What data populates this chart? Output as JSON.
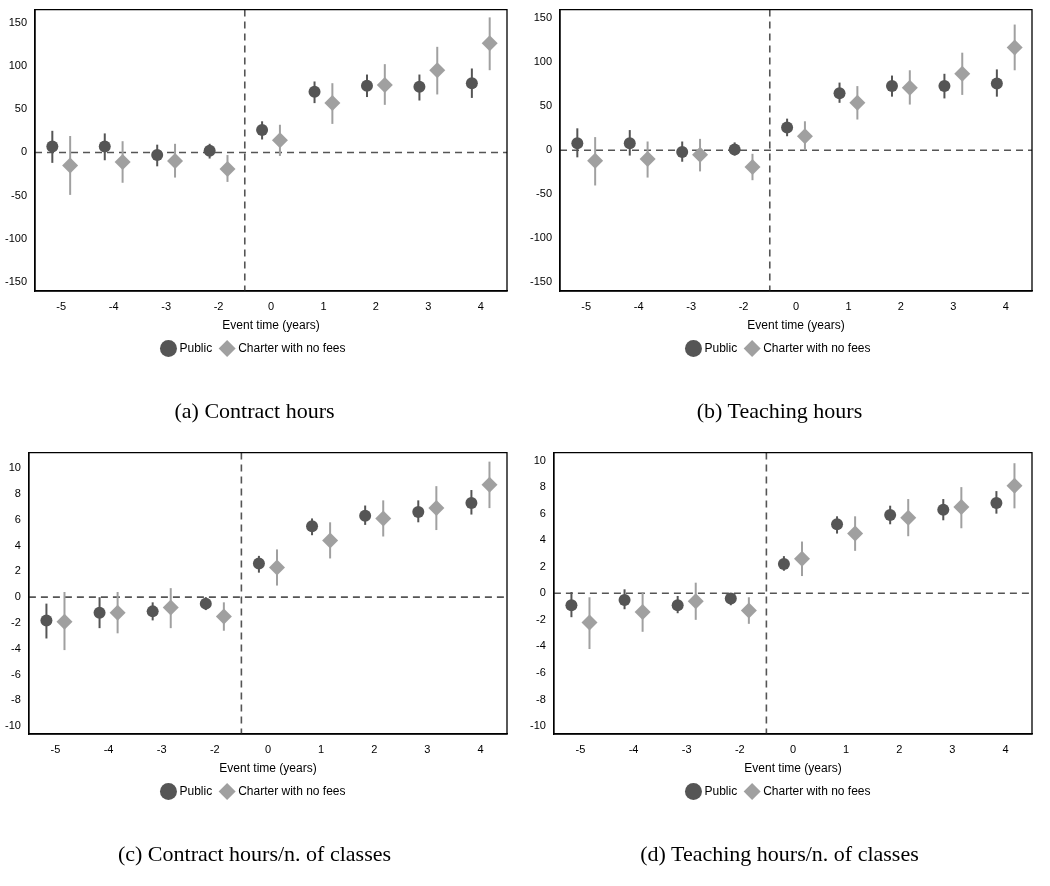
{
  "chart_data": [
    {
      "type": "scatter",
      "title": "(a) Contract hours",
      "xlabel": "Event time (years)",
      "categories": [
        "-5",
        "-4",
        "-3",
        "-2",
        "0",
        "1",
        "2",
        "3",
        "4"
      ],
      "ylim": [
        -160,
        165
      ],
      "yticks": [
        -150,
        -100,
        -50,
        0,
        50,
        100,
        150
      ],
      "grid": false,
      "legend": "bottom",
      "ref_lines": [
        {
          "axis": "y",
          "value": 0,
          "line_style": "dashed",
          "color": "#555555"
        }
      ],
      "series": [
        {
          "name": "Public",
          "color": "#555555",
          "marker": "circle",
          "values": [
            7,
            7,
            -3,
            2,
            26,
            70,
            77,
            76,
            80
          ],
          "errors": [
            [
              -12,
              25
            ],
            [
              -9,
              22
            ],
            [
              -16,
              9
            ],
            [
              -7,
              10
            ],
            [
              15,
              36
            ],
            [
              57,
              82
            ],
            [
              64,
              90
            ],
            [
              60,
              90
            ],
            [
              63,
              97
            ]
          ]
        },
        {
          "name": "Charter with no fees",
          "color": "#a0a0a0",
          "marker": "diamond",
          "values": [
            -15,
            -11,
            -10,
            -19,
            14,
            57,
            78,
            95,
            126
          ],
          "errors": [
            [
              -49,
              19
            ],
            [
              -35,
              13
            ],
            [
              -29,
              10
            ],
            [
              -34,
              -3
            ],
            [
              -4,
              32
            ],
            [
              33,
              80
            ],
            [
              55,
              102
            ],
            [
              67,
              122
            ],
            [
              95,
              156
            ]
          ]
        }
      ]
    },
    {
      "type": "scatter",
      "title": "(b) Teaching hours",
      "xlabel": "Event time (years)",
      "categories": [
        "-5",
        "-4",
        "-3",
        "-2",
        "0",
        "1",
        "2",
        "3",
        "4"
      ],
      "ylim": [
        -160,
        160
      ],
      "yticks": [
        -150,
        -100,
        -50,
        0,
        50,
        100,
        150
      ],
      "grid": false,
      "legend": "bottom",
      "ref_lines": [
        {
          "axis": "y",
          "value": 0,
          "line_style": "dashed",
          "color": "#555555"
        }
      ],
      "series": [
        {
          "name": "Public",
          "color": "#555555",
          "marker": "circle",
          "values": [
            8,
            8,
            -2,
            1,
            26,
            65,
            73,
            73,
            76
          ],
          "errors": [
            [
              -8,
              25
            ],
            [
              -6,
              23
            ],
            [
              -13,
              10
            ],
            [
              -6,
              9
            ],
            [
              16,
              36
            ],
            [
              54,
              77
            ],
            [
              61,
              85
            ],
            [
              59,
              87
            ],
            [
              61,
              92
            ]
          ]
        },
        {
          "name": "Charter with no fees",
          "color": "#a0a0a0",
          "marker": "diamond",
          "values": [
            -12,
            -10,
            -5,
            -19,
            16,
            54,
            71,
            87,
            117
          ],
          "errors": [
            [
              -40,
              15
            ],
            [
              -31,
              10
            ],
            [
              -24,
              13
            ],
            [
              -34,
              -4
            ],
            [
              0,
              33
            ],
            [
              35,
              73
            ],
            [
              52,
              91
            ],
            [
              63,
              111
            ],
            [
              91,
              143
            ]
          ]
        }
      ]
    },
    {
      "type": "scatter",
      "title": "(c) Contract hours/n. of classes",
      "xlabel": "Event time (years)",
      "categories": [
        "-5",
        "-4",
        "-3",
        "-2",
        "0",
        "1",
        "2",
        "3",
        "4"
      ],
      "ylim": [
        -10.6,
        11.2
      ],
      "yticks": [
        -10,
        -8,
        -6,
        -4,
        -2,
        0,
        2,
        4,
        6,
        8,
        10
      ],
      "grid": false,
      "legend": "bottom",
      "ref_lines": [
        {
          "axis": "y",
          "value": 0,
          "line_style": "dashed",
          "color": "#555555"
        }
      ],
      "series": [
        {
          "name": "Public",
          "color": "#555555",
          "marker": "circle",
          "values": [
            -1.8,
            -1.2,
            -1.1,
            -0.5,
            2.6,
            5.5,
            6.3,
            6.6,
            7.3
          ],
          "errors": [
            [
              -3.2,
              -0.5
            ],
            [
              -2.4,
              0
            ],
            [
              -1.8,
              -0.4
            ],
            [
              -1.0,
              0
            ],
            [
              1.9,
              3.2
            ],
            [
              4.8,
              6.1
            ],
            [
              5.6,
              7.1
            ],
            [
              5.8,
              7.5
            ],
            [
              6.4,
              8.3
            ]
          ]
        },
        {
          "name": "Charter with no fees",
          "color": "#a0a0a0",
          "marker": "diamond",
          "values": [
            -1.9,
            -1.2,
            -0.8,
            -1.5,
            2.3,
            4.4,
            6.1,
            6.9,
            8.7
          ],
          "errors": [
            [
              -4.1,
              0.4
            ],
            [
              -2.8,
              0.4
            ],
            [
              -2.4,
              0.7
            ],
            [
              -2.6,
              -0.4
            ],
            [
              0.9,
              3.7
            ],
            [
              3.0,
              5.8
            ],
            [
              4.7,
              7.5
            ],
            [
              5.2,
              8.6
            ],
            [
              6.9,
              10.5
            ]
          ]
        }
      ]
    },
    {
      "type": "scatter",
      "title": "(d) Teaching hours/n. of classes",
      "xlabel": "Event time (years)",
      "categories": [
        "-5",
        "-4",
        "-3",
        "-2",
        "0",
        "1",
        "2",
        "3",
        "4"
      ],
      "ylim": [
        -10.6,
        10.6
      ],
      "yticks": [
        -10,
        -8,
        -6,
        -4,
        -2,
        0,
        2,
        4,
        6,
        8,
        10
      ],
      "grid": false,
      "legend": "bottom",
      "ref_lines": [
        {
          "axis": "y",
          "value": 0,
          "line_style": "dashed",
          "color": "#555555"
        }
      ],
      "series": [
        {
          "name": "Public",
          "color": "#555555",
          "marker": "circle",
          "values": [
            -0.9,
            -0.5,
            -0.9,
            -0.4,
            2.2,
            5.2,
            5.9,
            6.3,
            6.8
          ],
          "errors": [
            [
              -1.8,
              0.1
            ],
            [
              -1.2,
              0.3
            ],
            [
              -1.5,
              -0.2
            ],
            [
              -0.9,
              0
            ],
            [
              1.7,
              2.8
            ],
            [
              4.5,
              5.8
            ],
            [
              5.2,
              6.6
            ],
            [
              5.5,
              7.1
            ],
            [
              6.0,
              7.7
            ]
          ]
        },
        {
          "name": "Charter with no fees",
          "color": "#a0a0a0",
          "marker": "diamond",
          "values": [
            -2.2,
            -1.4,
            -0.6,
            -1.3,
            2.6,
            4.5,
            5.7,
            6.5,
            8.1
          ],
          "errors": [
            [
              -4.2,
              -0.3
            ],
            [
              -2.9,
              0.1
            ],
            [
              -2.0,
              0.8
            ],
            [
              -2.3,
              -0.3
            ],
            [
              1.3,
              3.9
            ],
            [
              3.2,
              5.8
            ],
            [
              4.3,
              7.1
            ],
            [
              4.9,
              8.0
            ],
            [
              6.4,
              9.8
            ]
          ]
        }
      ]
    }
  ]
}
